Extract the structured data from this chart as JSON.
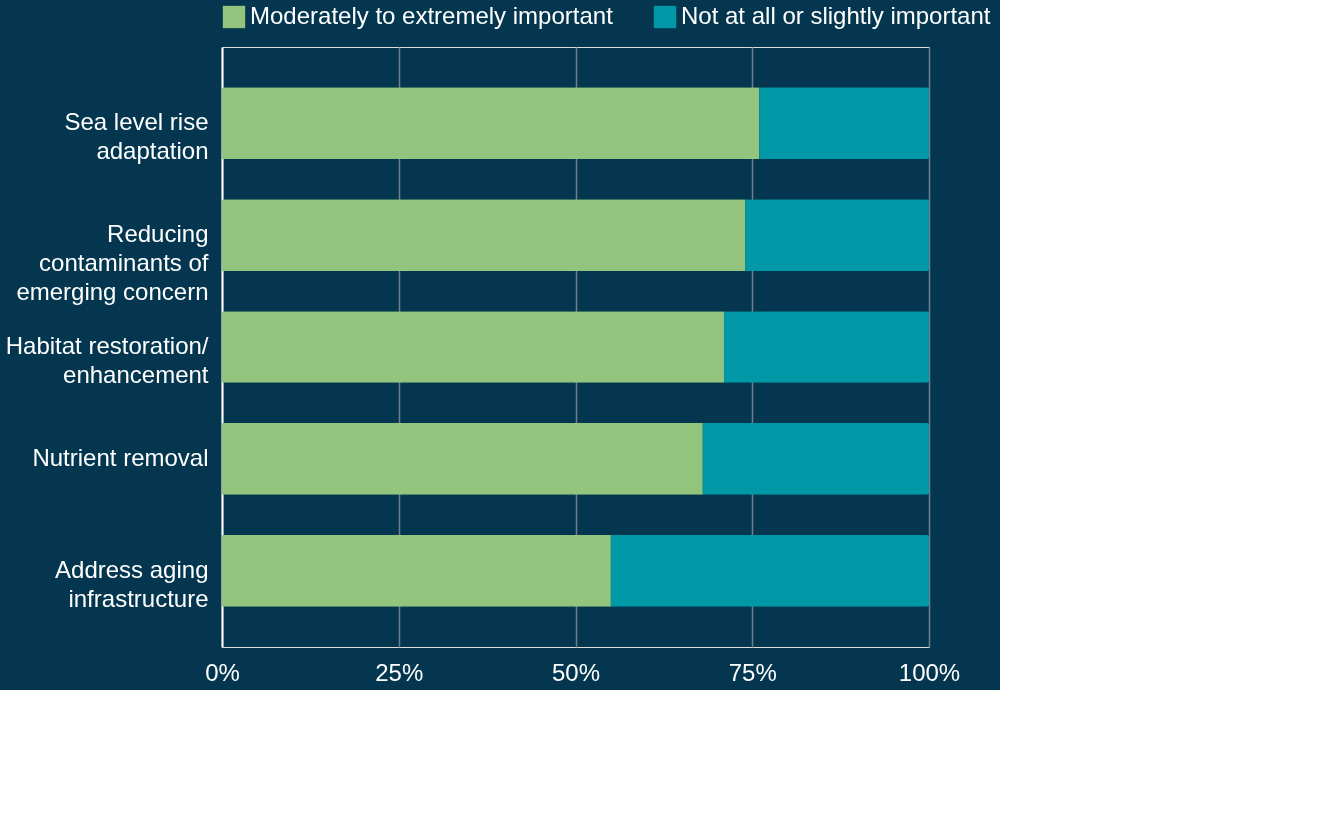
{
  "chart_data": {
    "type": "bar",
    "orientation": "horizontal",
    "stacked": true,
    "categories": [
      "Sea level rise adaptation",
      "Reducing contaminants of emerging concern",
      "Habitat restoration/ enhancement",
      "Nutrient removal",
      "Address aging infrastructure"
    ],
    "series": [
      {
        "name": "Moderately to extremely important",
        "color": "#93c47d",
        "values": [
          76,
          74,
          71,
          68,
          55
        ]
      },
      {
        "name": "Not at all or slightly important",
        "color": "#0097a7",
        "values": [
          24,
          26,
          29,
          32,
          45
        ]
      }
    ],
    "xlim": [
      0,
      100
    ],
    "xticks": [
      {
        "value": 0,
        "label": "0%"
      },
      {
        "value": 25,
        "label": "25%"
      },
      {
        "value": 50,
        "label": "50%"
      },
      {
        "value": 75,
        "label": "75%"
      },
      {
        "value": 100,
        "label": "100%"
      }
    ],
    "grid": "x",
    "legend": "top"
  }
}
